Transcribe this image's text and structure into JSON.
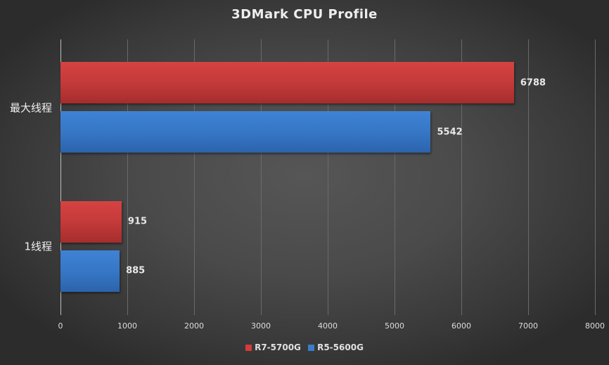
{
  "chart_data": {
    "type": "bar",
    "orientation": "horizontal",
    "title": "3DMark CPU Profile",
    "categories": [
      "最大线程",
      "1线程"
    ],
    "series": [
      {
        "name": "R7-5700G",
        "color": "#c83c3c",
        "values": [
          6788,
          915
        ]
      },
      {
        "name": "R5-5600G",
        "color": "#3878c8",
        "values": [
          5542,
          885
        ]
      }
    ],
    "xlabel": "",
    "ylabel": "",
    "xlim": [
      0,
      8000
    ],
    "x_ticks": [
      0,
      1000,
      2000,
      3000,
      4000,
      5000,
      6000,
      7000,
      8000
    ],
    "grid": true,
    "legend_position": "bottom",
    "data_labels": true
  },
  "labels": {
    "title": "3DMark CPU Profile",
    "cat0": "最大线程",
    "cat1": "1线程",
    "v00": "6788",
    "v01": "5542",
    "v10": "915",
    "v11": "885",
    "ticks": [
      "0",
      "1000",
      "2000",
      "3000",
      "4000",
      "5000",
      "6000",
      "7000",
      "8000"
    ],
    "legend0": "R7-5700G",
    "legend1": "R5-5600G"
  }
}
